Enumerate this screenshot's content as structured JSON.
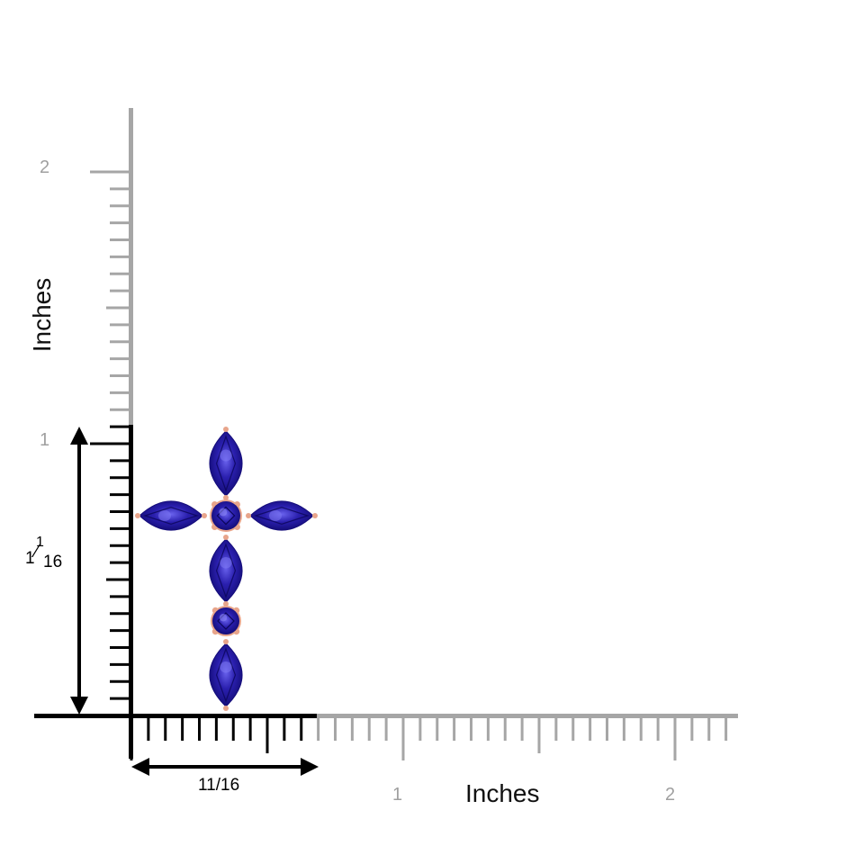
{
  "ruler": {
    "unit_label_vertical": "Inches",
    "unit_label_horizontal": "Inches",
    "vertical_numbers": [
      "2",
      "1"
    ],
    "horizontal_numbers": [
      "1",
      "2"
    ],
    "colors": {
      "ruler_gray": "#a6a6a6",
      "ruler_black": "#000000"
    }
  },
  "dimensions": {
    "width_label": "11/16",
    "height_whole": "1",
    "height_num": "1",
    "height_den": "16"
  },
  "product": {
    "stones": [
      {
        "id": "top",
        "shape": "marquise",
        "orientation": "vertical"
      },
      {
        "id": "left",
        "shape": "marquise",
        "orientation": "horizontal"
      },
      {
        "id": "center",
        "shape": "round"
      },
      {
        "id": "right",
        "shape": "marquise",
        "orientation": "horizontal"
      },
      {
        "id": "lower-upper",
        "shape": "marquise",
        "orientation": "vertical"
      },
      {
        "id": "lower-round",
        "shape": "round"
      },
      {
        "id": "bottom",
        "shape": "marquise",
        "orientation": "vertical"
      }
    ],
    "colors": {
      "stone": "#2a1fae",
      "stone_dark": "#0f0a6a",
      "stone_light": "#5a55e0",
      "metal": "#e8a58b"
    }
  }
}
